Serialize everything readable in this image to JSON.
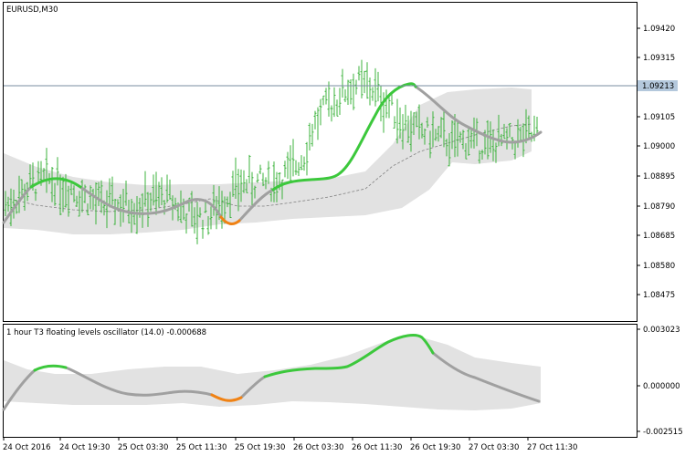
{
  "window": {
    "symbol_label": "EURUSD,M30"
  },
  "indicator": {
    "label": "1 hour T3 floating levels oscillator (14.0) -0.000688"
  },
  "colors": {
    "bar_up": "#3cb33c",
    "line_up": "#3cc83c",
    "line_down": "#f08214",
    "line_neutral": "#a0a0a0",
    "band_fill": "#e2e2e2",
    "mid_dash": "#808080",
    "current_price_line": "#7a8ca0",
    "price_tag_bg": "#b4c8dc"
  },
  "price_axis": {
    "ticks": [
      "1.09420",
      "1.09315",
      "1.09105",
      "1.09000",
      "1.08895",
      "1.08790",
      "1.08685",
      "1.08580",
      "1.08475"
    ],
    "current_price": "1.09213"
  },
  "osc_axis": {
    "ticks": [
      "0.003023",
      "0.000000",
      "-0.002515"
    ]
  },
  "time_axis": {
    "labels": [
      "24 Oct 2016",
      "24 Oct 19:30",
      "25 Oct 03:30",
      "25 Oct 11:30",
      "25 Oct 19:30",
      "26 Oct 03:30",
      "26 Oct 11:30",
      "26 Oct 19:30",
      "27 Oct 03:30",
      "27 Oct 11:30"
    ]
  },
  "chart_data": [
    {
      "type": "line",
      "panel": "price",
      "y_axis_ticks": [
        1.0942,
        1.09315,
        1.09105,
        1.09,
        1.08895,
        1.0879,
        1.08685,
        1.0858,
        1.08475
      ],
      "current_price": 1.09213,
      "series": [
        {
          "x": [
            0,
            0.03,
            0.05,
            0.08,
            0.1,
            0.13,
            0.15,
            0.18,
            0.21,
            0.24,
            0.27,
            0.3,
            0.32,
            0.35,
            0.38,
            0.4,
            0.43,
            0.45,
            0.47,
            0.5,
            0.53,
            0.56,
            0.58,
            0.61,
            0.64,
            0.66,
            0.69,
            0.72,
            0.75,
            0.78,
            0.81,
            0.84,
            0.87,
            0.9,
            0.93,
            0.96,
            1
          ],
          "y": [
            1.0879,
            1.0883,
            1.0886,
            1.0888,
            1.0887,
            1.0884,
            1.08815,
            1.0879,
            1.0879,
            1.0879,
            1.0881,
            1.0882,
            1.0879,
            1.08745,
            1.08745,
            1.0879,
            1.0885,
            1.0887,
            1.0887,
            1.0887,
            1.089,
            1.0897,
            1.0908,
            1.0915,
            1.092,
            1.0922,
            1.092,
            1.0914,
            1.0908,
            1.0905,
            1.0903,
            1.0901,
            1.0902,
            1.09,
            1.0901,
            1.0902,
            1.0904
          ]
        }
      ]
    },
    {
      "type": "line",
      "panel": "oscillator",
      "y_axis_ticks": [
        0.003023,
        0,
        -0.002515
      ],
      "current_value": -0.000688,
      "series": [
        {
          "x": [
            0,
            0.04,
            0.07,
            0.1,
            0.13,
            0.16,
            0.2,
            0.24,
            0.28,
            0.32,
            0.36,
            0.39,
            0.42,
            0.45,
            0.48,
            0.52,
            0.56,
            0.6,
            0.64,
            0.68,
            0.71,
            0.74,
            0.76,
            0.8,
            0.84,
            0.88,
            0.92,
            0.96,
            1
          ],
          "y": [
            -0.001,
            0.0006,
            0.0009,
            0.0008,
            0.0004,
            0.0001,
            -0.0003,
            -0.0003,
            -0.0002,
            -0.0002,
            -0.0003,
            -0.0007,
            -0.0007,
            -0.0002,
            0.0005,
            0.0006,
            0.0007,
            0.0007,
            0.0009,
            0.0017,
            0.0022,
            0.0024,
            0.0022,
            0.0012,
            0.0005,
            0.0002,
            -0.0001,
            -0.0004,
            -0.0006
          ]
        }
      ]
    }
  ]
}
